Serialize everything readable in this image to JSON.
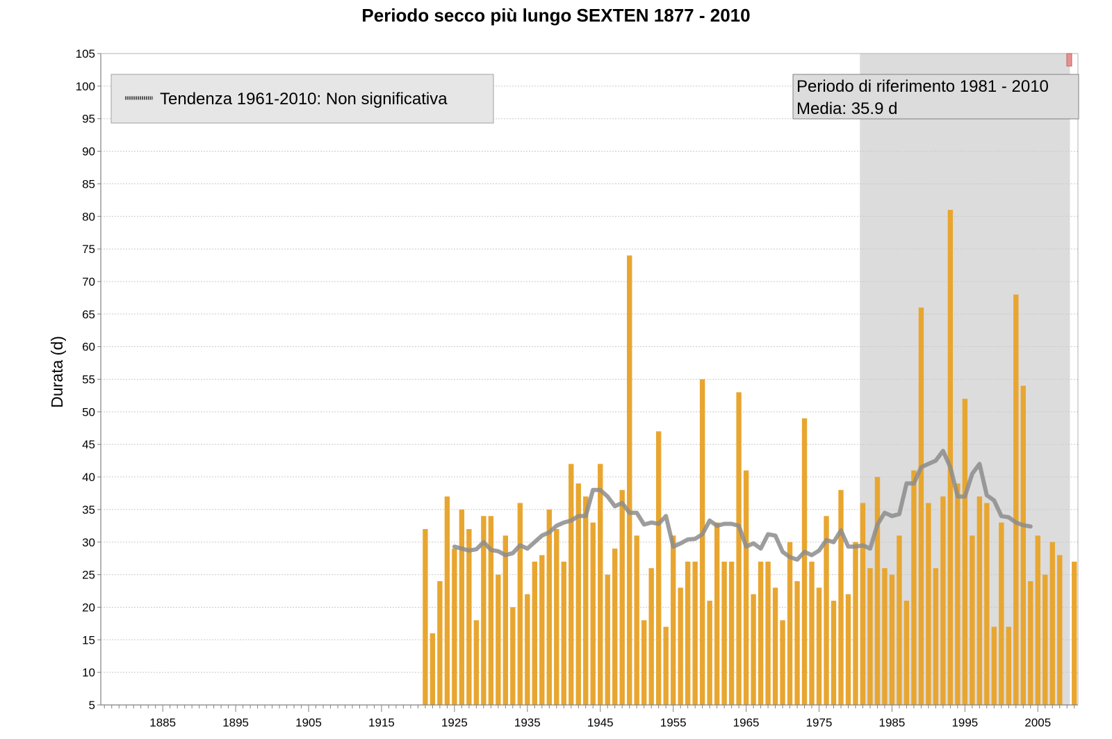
{
  "chart_data": {
    "type": "bar",
    "title": "Periodo secco più lungo SEXTEN 1877 - 2010",
    "ylabel": "Durata (d)",
    "xlabel": "",
    "xlim": [
      1877,
      2010
    ],
    "ylim": [
      5,
      105
    ],
    "x_ticks": [
      1885,
      1895,
      1905,
      1915,
      1925,
      1935,
      1945,
      1955,
      1965,
      1975,
      1985,
      1995,
      2005
    ],
    "y_ticks": [
      5,
      10,
      15,
      20,
      25,
      30,
      35,
      40,
      45,
      50,
      55,
      60,
      65,
      70,
      75,
      80,
      85,
      90,
      95,
      100,
      105
    ],
    "grid": "horizontal dotted",
    "bar_color": "#E8A630",
    "trend_color": "#8c8c8c",
    "reference_fill": "#dcdcdc",
    "years": [
      1921,
      1922,
      1923,
      1924,
      1925,
      1926,
      1927,
      1928,
      1929,
      1930,
      1931,
      1932,
      1933,
      1934,
      1935,
      1936,
      1937,
      1938,
      1939,
      1940,
      1941,
      1942,
      1943,
      1944,
      1945,
      1946,
      1947,
      1948,
      1949,
      1950,
      1951,
      1952,
      1953,
      1954,
      1955,
      1956,
      1957,
      1958,
      1959,
      1960,
      1961,
      1962,
      1963,
      1964,
      1965,
      1966,
      1967,
      1968,
      1969,
      1970,
      1971,
      1972,
      1973,
      1974,
      1975,
      1976,
      1977,
      1978,
      1979,
      1980,
      1981,
      1982,
      1983,
      1984,
      1985,
      1986,
      1987,
      1988,
      1989,
      1990,
      1991,
      1992,
      1993,
      1994,
      1995,
      1996,
      1997,
      1998,
      1999,
      2000,
      2001,
      2002,
      2003,
      2004,
      2005,
      2006,
      2007,
      2008,
      2010
    ],
    "values": [
      32,
      16,
      24,
      37,
      29,
      35,
      32,
      18,
      34,
      34,
      25,
      31,
      20,
      36,
      22,
      27,
      28,
      35,
      32,
      27,
      42,
      39,
      37,
      33,
      42,
      25,
      29,
      38,
      74,
      31,
      18,
      26,
      47,
      17,
      31,
      23,
      27,
      27,
      55,
      21,
      33,
      27,
      27,
      53,
      41,
      22,
      27,
      27,
      23,
      18,
      30,
      24,
      49,
      27,
      23,
      34,
      21,
      38,
      22,
      30,
      36,
      26,
      40,
      26,
      25,
      31,
      21,
      41,
      66,
      36,
      26,
      37,
      81,
      39,
      52,
      31,
      37,
      36,
      17,
      33,
      17,
      68,
      54,
      24,
      31,
      25,
      30,
      28,
      27
    ],
    "trend": {
      "years": [
        1925,
        1926,
        1927,
        1928,
        1929,
        1930,
        1931,
        1932,
        1933,
        1934,
        1935,
        1936,
        1937,
        1938,
        1939,
        1940,
        1941,
        1942,
        1943,
        1944,
        1945,
        1946,
        1947,
        1948,
        1949,
        1950,
        1951,
        1952,
        1953,
        1954,
        1955,
        1956,
        1957,
        1958,
        1959,
        1960,
        1961,
        1962,
        1963,
        1964,
        1965,
        1966,
        1967,
        1968,
        1969,
        1970,
        1971,
        1972,
        1973,
        1974,
        1975,
        1976,
        1977,
        1978,
        1979,
        1980,
        1981,
        1982,
        1983,
        1984,
        1985,
        1986,
        1987,
        1988,
        1989,
        1990,
        1991,
        1992,
        1993,
        1994,
        1995,
        1996,
        1997,
        1998,
        1999,
        2000,
        2001,
        2002,
        2003,
        2004
      ],
      "values": [
        29.3,
        29,
        28.7,
        28.9,
        30,
        28.8,
        28.6,
        28,
        28.3,
        29.5,
        29,
        30,
        31,
        31.5,
        32.5,
        33,
        33.3,
        34,
        34,
        38,
        38,
        37,
        35.5,
        36,
        34.5,
        34.5,
        32.7,
        33,
        32.8,
        34,
        29.3,
        29.8,
        30.4,
        30.5,
        31.2,
        33.3,
        32.5,
        32.8,
        32.8,
        32.5,
        29.3,
        29.8,
        29,
        31.2,
        31,
        28.5,
        27.7,
        27.3,
        28.5,
        28,
        28.7,
        30.3,
        30,
        31.8,
        29.3,
        29.3,
        29.5,
        29,
        32.7,
        34.5,
        34,
        34.3,
        39,
        39,
        41.5,
        42,
        42.5,
        44,
        41.5,
        37,
        37,
        40.5,
        42,
        37.2,
        36.4,
        34,
        33.8,
        33,
        32.6,
        32.4
      ]
    },
    "legend": {
      "entries": [
        "Tendenza 1961-2010: Non significativa"
      ],
      "placement": "top-left"
    },
    "reference_period": {
      "start": 1981,
      "end": 2009,
      "line1": "Periodo di riferimento 1981 - 2010",
      "line2": "Media: 35.9 d",
      "placement": "top-right"
    }
  }
}
